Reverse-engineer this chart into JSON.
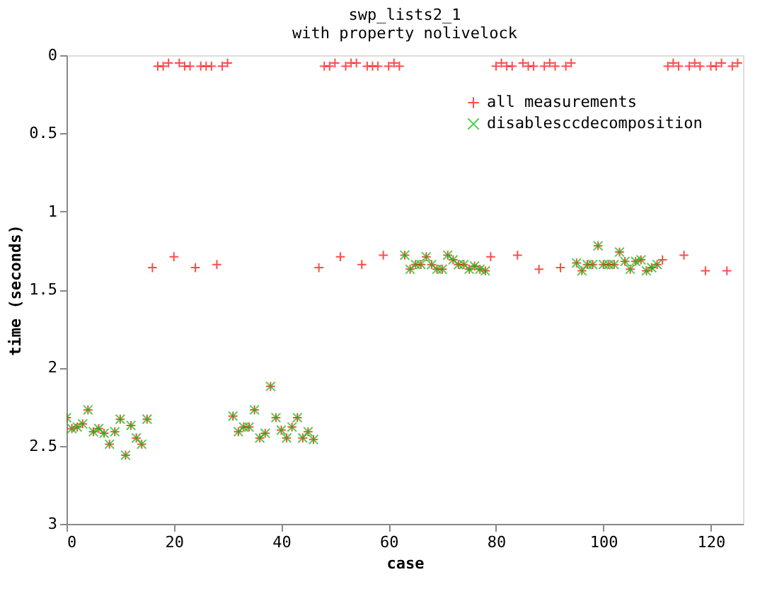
{
  "chart_data": {
    "type": "scatter",
    "title": [
      "swp_lists2_1",
      "with property nolivelock"
    ],
    "xlabel": "case",
    "ylabel": "time (seconds)",
    "xlim": [
      0,
      126
    ],
    "xticks": [
      0,
      20,
      40,
      60,
      80,
      100,
      120
    ],
    "ylim": [
      3,
      0
    ],
    "yticks": [
      0,
      0.5,
      1,
      1.5,
      2,
      2.5,
      3
    ],
    "grid": false,
    "legend": "top right",
    "series": [
      {
        "name": "all measurements",
        "color": "#ff0000",
        "marker": "cross",
        "x": [
          0,
          1,
          2,
          3,
          4,
          5,
          6,
          7,
          8,
          9,
          10,
          11,
          12,
          13,
          14,
          15,
          16,
          17,
          18,
          19,
          20,
          21,
          22,
          23,
          24,
          25,
          26,
          27,
          28,
          29,
          30,
          31,
          32,
          33,
          34,
          35,
          36,
          37,
          38,
          39,
          40,
          41,
          42,
          43,
          44,
          45,
          46,
          47,
          48,
          49,
          50,
          51,
          52,
          53,
          54,
          55,
          56,
          57,
          58,
          59,
          60,
          61,
          62,
          63,
          64,
          65,
          66,
          67,
          68,
          69,
          70,
          71,
          72,
          73,
          74,
          75,
          76,
          77,
          78,
          79,
          80,
          81,
          82,
          83,
          84,
          85,
          86,
          87,
          88,
          89,
          90,
          91,
          92,
          93,
          94,
          95,
          96,
          97,
          98,
          99,
          100,
          101,
          102,
          103,
          104,
          105,
          106,
          107,
          108,
          109,
          110,
          111,
          112,
          113,
          114,
          115,
          116,
          117,
          118,
          119,
          120,
          121,
          122,
          123,
          124,
          125
        ],
        "values": [
          2.32,
          2.39,
          2.38,
          2.36,
          2.27,
          2.41,
          2.39,
          2.42,
          2.49,
          2.41,
          2.33,
          2.56,
          2.37,
          2.45,
          2.49,
          2.33,
          1.36,
          0.07,
          0.07,
          0.05,
          1.29,
          0.05,
          0.07,
          0.07,
          1.36,
          0.07,
          0.07,
          0.07,
          1.34,
          0.07,
          0.05,
          2.31,
          2.41,
          2.38,
          2.38,
          2.27,
          2.45,
          2.42,
          2.12,
          2.32,
          2.4,
          2.45,
          2.38,
          2.32,
          2.45,
          2.41,
          2.46,
          1.36,
          0.07,
          0.07,
          0.05,
          1.29,
          0.07,
          0.05,
          0.05,
          1.34,
          0.07,
          0.07,
          0.07,
          1.28,
          0.07,
          0.05,
          0.07,
          1.28,
          1.37,
          1.34,
          1.34,
          1.29,
          1.34,
          1.37,
          1.37,
          1.28,
          1.31,
          1.34,
          1.34,
          1.37,
          1.35,
          1.37,
          1.38,
          1.29,
          0.07,
          0.05,
          0.07,
          0.07,
          1.28,
          0.05,
          0.07,
          0.07,
          1.37,
          0.07,
          0.05,
          0.07,
          1.36,
          0.07,
          0.05,
          1.33,
          1.38,
          1.34,
          1.34,
          1.22,
          1.34,
          1.34,
          1.34,
          1.26,
          1.32,
          1.37,
          1.32,
          1.31,
          1.38,
          1.36,
          1.34,
          1.31,
          0.07,
          0.05,
          0.07,
          1.28,
          0.07,
          0.05,
          0.07,
          1.38,
          0.07,
          0.07,
          0.05,
          1.38,
          0.07,
          0.05
        ]
      },
      {
        "name": "disablesccdecomposition",
        "color": "#00c000",
        "marker": "x",
        "x": [
          0,
          1,
          2,
          3,
          4,
          5,
          6,
          7,
          8,
          9,
          10,
          11,
          12,
          13,
          14,
          15,
          31,
          32,
          33,
          34,
          35,
          36,
          37,
          38,
          39,
          40,
          41,
          42,
          43,
          44,
          45,
          46,
          63,
          64,
          65,
          66,
          67,
          68,
          69,
          70,
          71,
          72,
          73,
          74,
          75,
          76,
          77,
          78,
          95,
          96,
          97,
          98,
          99,
          100,
          101,
          102,
          103,
          104,
          105,
          106,
          107,
          108,
          109,
          110
        ],
        "values": [
          2.32,
          2.39,
          2.38,
          2.36,
          2.27,
          2.41,
          2.39,
          2.42,
          2.49,
          2.41,
          2.33,
          2.56,
          2.37,
          2.45,
          2.49,
          2.33,
          2.31,
          2.41,
          2.38,
          2.38,
          2.27,
          2.45,
          2.42,
          2.12,
          2.32,
          2.4,
          2.45,
          2.38,
          2.32,
          2.45,
          2.41,
          2.46,
          1.28,
          1.37,
          1.34,
          1.34,
          1.29,
          1.34,
          1.37,
          1.37,
          1.28,
          1.31,
          1.34,
          1.34,
          1.37,
          1.35,
          1.37,
          1.38,
          1.33,
          1.38,
          1.34,
          1.34,
          1.22,
          1.34,
          1.34,
          1.34,
          1.26,
          1.32,
          1.37,
          1.32,
          1.31,
          1.38,
          1.36,
          1.34
        ]
      }
    ]
  }
}
